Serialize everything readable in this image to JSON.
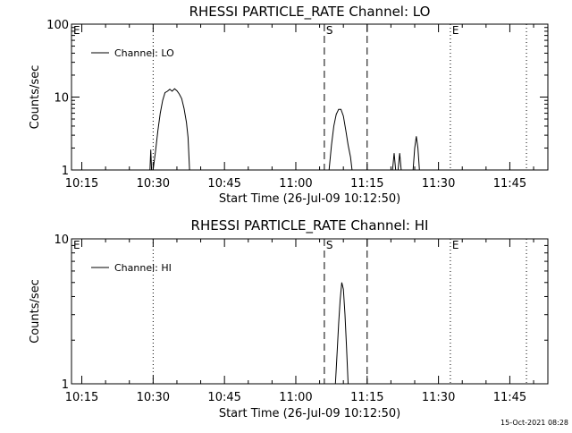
{
  "chart_data": [
    {
      "type": "line",
      "title": "RHESSI PARTICLE_RATE Channel: LO",
      "xlabel": "Start Time (26-Jul-09 10:12:50)",
      "ylabel": "Counts/sec",
      "yscale": "log",
      "ylim": [
        1,
        100
      ],
      "y_ticks": [
        1,
        10,
        100
      ],
      "x_ticks": [
        "10:15",
        "10:30",
        "10:45",
        "11:00",
        "11:15",
        "11:30",
        "11:45"
      ],
      "xlim": [
        "10:12:50",
        "11:53:00"
      ],
      "legend": {
        "label": "Channel: LO",
        "placement": "top-left"
      },
      "markers": [
        {
          "label": "E",
          "time": "10:12:50",
          "style": "none"
        },
        {
          "label": "",
          "time": "10:30:00",
          "style": "dotted"
        },
        {
          "label": "S",
          "time": "11:06:00",
          "style": "dashed"
        },
        {
          "label": "",
          "time": "11:15:00",
          "style": "dashed"
        },
        {
          "label": "E",
          "time": "11:32:30",
          "style": "dotted"
        },
        {
          "label": "",
          "time": "11:48:30",
          "style": "dotted"
        }
      ],
      "series": [
        {
          "name": "Channel: LO",
          "points": [
            [
              "10:29:20",
              1.0
            ],
            [
              "10:29:30",
              1.9
            ],
            [
              "10:29:40",
              1.0
            ],
            [
              "10:30:00",
              1.0
            ],
            [
              "10:30:30",
              1.8
            ],
            [
              "10:31:00",
              3.5
            ],
            [
              "10:31:30",
              6.0
            ],
            [
              "10:32:00",
              9.0
            ],
            [
              "10:32:30",
              11.5
            ],
            [
              "10:33:00",
              12.0
            ],
            [
              "10:33:30",
              12.8
            ],
            [
              "10:34:00",
              12.0
            ],
            [
              "10:34:30",
              13.0
            ],
            [
              "10:35:00",
              12.2
            ],
            [
              "10:35:30",
              11.0
            ],
            [
              "10:36:00",
              9.5
            ],
            [
              "10:36:30",
              7.0
            ],
            [
              "10:37:00",
              4.5
            ],
            [
              "10:37:20",
              2.8
            ],
            [
              "10:37:40",
              1.0
            ],
            [
              "11:07:00",
              1.0
            ],
            [
              "11:07:30",
              2.2
            ],
            [
              "11:08:00",
              4.0
            ],
            [
              "11:08:30",
              5.8
            ],
            [
              "11:09:00",
              6.8
            ],
            [
              "11:09:30",
              6.8
            ],
            [
              "11:10:00",
              5.5
            ],
            [
              "11:10:30",
              3.5
            ],
            [
              "11:11:00",
              2.2
            ],
            [
              "11:11:30",
              1.5
            ],
            [
              "11:11:50",
              1.0
            ],
            [
              "11:20:20",
              1.0
            ],
            [
              "11:20:40",
              1.7
            ],
            [
              "11:21:00",
              1.0
            ],
            [
              "11:21:30",
              1.0
            ],
            [
              "11:21:50",
              1.7
            ],
            [
              "11:22:10",
              1.0
            ],
            [
              "11:24:40",
              1.0
            ],
            [
              "11:25:00",
              2.0
            ],
            [
              "11:25:20",
              2.9
            ],
            [
              "11:25:40",
              2.0
            ],
            [
              "11:26:00",
              1.0
            ]
          ]
        }
      ]
    },
    {
      "type": "line",
      "title": "RHESSI PARTICLE_RATE Channel: HI",
      "xlabel": "Start Time (26-Jul-09 10:12:50)",
      "ylabel": "Counts/sec",
      "yscale": "log",
      "ylim": [
        1,
        10
      ],
      "y_ticks": [
        1,
        10
      ],
      "x_ticks": [
        "10:15",
        "10:30",
        "10:45",
        "11:00",
        "11:15",
        "11:30",
        "11:45"
      ],
      "xlim": [
        "10:12:50",
        "11:53:00"
      ],
      "legend": {
        "label": "Channel: HI",
        "placement": "top-left"
      },
      "markers": [
        {
          "label": "E",
          "time": "10:12:50",
          "style": "none"
        },
        {
          "label": "",
          "time": "10:30:00",
          "style": "dotted"
        },
        {
          "label": "S",
          "time": "11:06:00",
          "style": "dashed"
        },
        {
          "label": "",
          "time": "11:15:00",
          "style": "dashed"
        },
        {
          "label": "E",
          "time": "11:32:30",
          "style": "dotted"
        },
        {
          "label": "",
          "time": "11:48:30",
          "style": "dotted"
        }
      ],
      "series": [
        {
          "name": "Channel: HI",
          "points": [
            [
              "11:08:20",
              1.0
            ],
            [
              "11:08:40",
              1.6
            ],
            [
              "11:09:00",
              2.6
            ],
            [
              "11:09:20",
              3.8
            ],
            [
              "11:09:40",
              5.0
            ],
            [
              "11:10:00",
              4.5
            ],
            [
              "11:10:20",
              3.0
            ],
            [
              "11:10:40",
              1.8
            ],
            [
              "11:11:00",
              1.0
            ]
          ]
        }
      ]
    }
  ],
  "footer": {
    "timestamp": "15-Oct-2021 08:28"
  }
}
